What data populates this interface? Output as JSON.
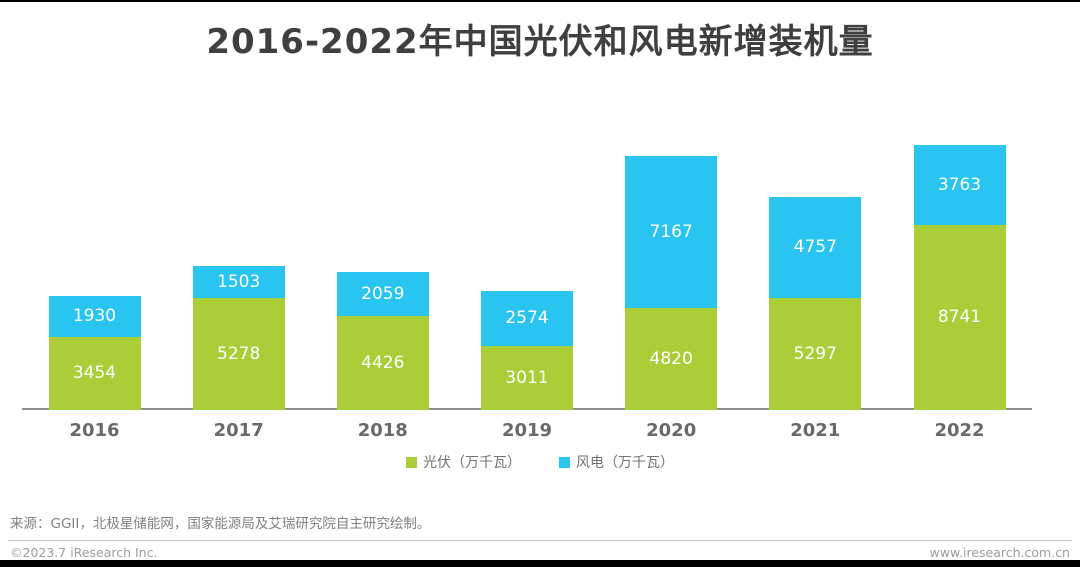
{
  "title": "2016-2022年中国光伏和风电新增装机量",
  "chart_data": {
    "type": "bar",
    "stacked": true,
    "categories": [
      "2016",
      "2017",
      "2018",
      "2019",
      "2020",
      "2021",
      "2022"
    ],
    "series": [
      {
        "name": "光伏（万千瓦）",
        "color": "#abcd37",
        "values": [
          3454,
          5278,
          4426,
          3011,
          4820,
          5297,
          8741
        ]
      },
      {
        "name": "风电（万千瓦）",
        "color": "#29c4f0",
        "values": [
          1930,
          1503,
          2059,
          2574,
          7167,
          4757,
          3763
        ]
      }
    ],
    "title": "2016-2022年中国光伏和风电新增装机量",
    "xlabel": "",
    "ylabel": "",
    "grid": false,
    "legend_position": "bottom",
    "value_labels": "inside-segment-white",
    "ylim": [
      0,
      12600
    ]
  },
  "legend": {
    "pv_label": "光伏（万千瓦）",
    "wind_label": "风电（万千瓦）"
  },
  "source_note": "来源：GGII，北极星储能网，国家能源局及艾瑞研究院自主研究绘制。",
  "footer": {
    "left": "©2023.7 iResearch Inc.",
    "right": "www.iresearch.com.cn"
  },
  "colors": {
    "pv_green": "#abcd37",
    "wind_blue": "#29c4f0",
    "title_text": "#3f3f3f",
    "axis_line": "#8c8c8c",
    "accent_black": "#000000"
  }
}
